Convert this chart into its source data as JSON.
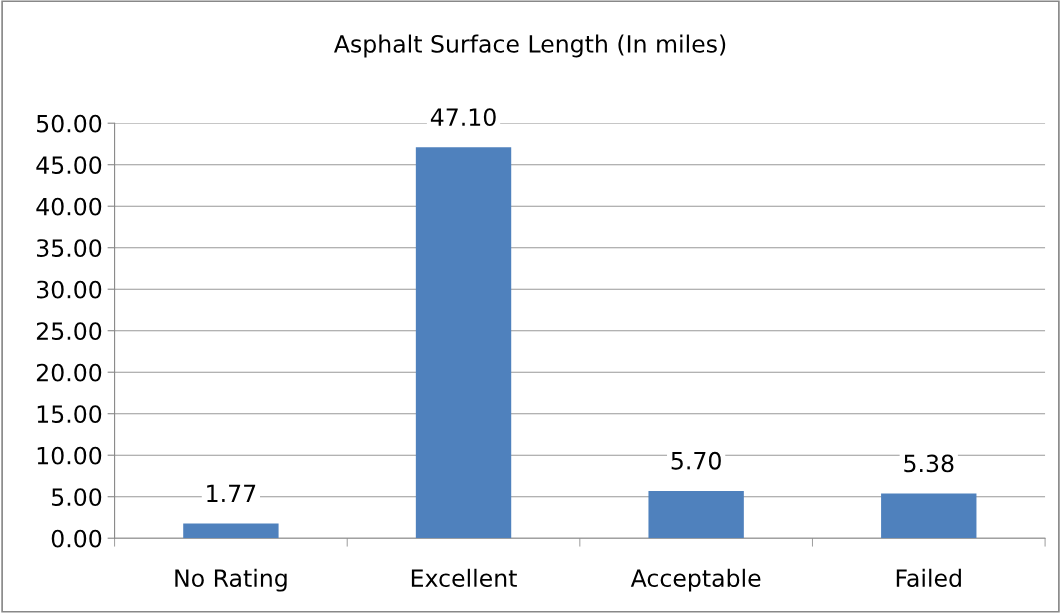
{
  "chart_data": {
    "type": "bar",
    "title": "Asphalt Surface Length (In miles)",
    "categories": [
      "No Rating",
      "Excellent",
      "Acceptable",
      "Failed"
    ],
    "values": [
      1.77,
      47.1,
      5.7,
      5.38
    ],
    "value_labels": [
      "1.77",
      "47.10",
      "5.70",
      "5.38"
    ],
    "color": "#4f81bd",
    "ylim": [
      0,
      50
    ],
    "yticks": [
      {
        "value": 0,
        "label": "0.00"
      },
      {
        "value": 5,
        "label": "5.00"
      },
      {
        "value": 10,
        "label": "10.00"
      },
      {
        "value": 15,
        "label": "15.00"
      },
      {
        "value": 20,
        "label": "20.00"
      },
      {
        "value": 25,
        "label": "25.00"
      },
      {
        "value": 30,
        "label": "30.00"
      },
      {
        "value": 35,
        "label": "35.00"
      },
      {
        "value": 40,
        "label": "40.00"
      },
      {
        "value": 45,
        "label": "45.00"
      },
      {
        "value": 50,
        "label": "50.00"
      }
    ],
    "grid": "y",
    "legend": false
  }
}
